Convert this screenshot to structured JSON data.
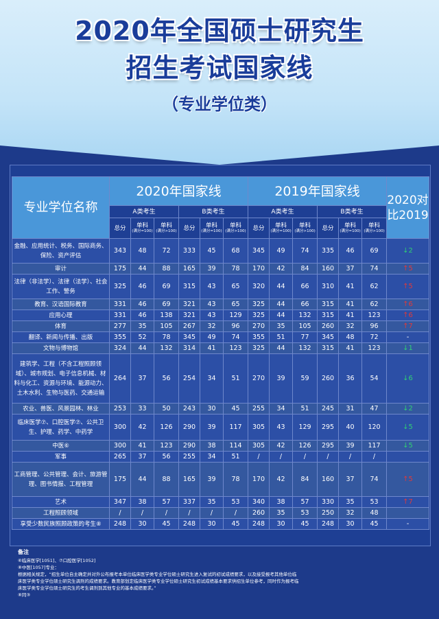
{
  "title_line1": "2020年全国硕士研究生",
  "title_line2": "招生考试国家线",
  "title_line3": "（专业学位类）",
  "header": {
    "name": "专业学位名称",
    "y2020": "2020年国家线",
    "y2019": "2019年国家线",
    "cmp": "2020对比2019",
    "cat_a": "A类考生",
    "cat_b": "B类考生",
    "total": "总分",
    "single": "单科",
    "sub_le100": "(满分=100)",
    "sub_gt100": "(满分>100)"
  },
  "rows": [
    {
      "name": "金融、应用统计、税务、国际商务、保险、资产评估",
      "v": [
        "343",
        "48",
        "72",
        "333",
        "45",
        "68",
        "345",
        "49",
        "74",
        "335",
        "46",
        "69"
      ],
      "chg": "↓2",
      "dir": "down"
    },
    {
      "name": "审计",
      "v": [
        "175",
        "44",
        "88",
        "165",
        "39",
        "78",
        "170",
        "42",
        "84",
        "160",
        "37",
        "74"
      ],
      "chg": "↑5",
      "dir": "up"
    },
    {
      "name": "法律（非法学）、法律（法学）、社会工作、警务",
      "v": [
        "325",
        "46",
        "69",
        "315",
        "43",
        "65",
        "320",
        "44",
        "66",
        "310",
        "41",
        "62"
      ],
      "chg": "↑5",
      "dir": "up"
    },
    {
      "name": "教育、汉语国际教育",
      "v": [
        "331",
        "46",
        "69",
        "321",
        "43",
        "65",
        "325",
        "44",
        "66",
        "315",
        "41",
        "62"
      ],
      "chg": "↑6",
      "dir": "up"
    },
    {
      "name": "应用心理",
      "v": [
        "331",
        "46",
        "138",
        "321",
        "43",
        "129",
        "325",
        "44",
        "132",
        "315",
        "41",
        "123"
      ],
      "chg": "↑6",
      "dir": "up"
    },
    {
      "name": "体育",
      "v": [
        "277",
        "35",
        "105",
        "267",
        "32",
        "96",
        "270",
        "35",
        "105",
        "260",
        "32",
        "96"
      ],
      "chg": "↑7",
      "dir": "up"
    },
    {
      "name": "翻译、新闻与传播、出版",
      "v": [
        "355",
        "52",
        "78",
        "345",
        "49",
        "74",
        "355",
        "51",
        "77",
        "345",
        "48",
        "72"
      ],
      "chg": "-",
      "dir": "none"
    },
    {
      "name": "文物与博物馆",
      "v": [
        "324",
        "44",
        "132",
        "314",
        "41",
        "123",
        "325",
        "44",
        "132",
        "315",
        "41",
        "123"
      ],
      "chg": "↓1",
      "dir": "down"
    },
    {
      "name": "建筑学、工程（不含工程照顾领域）、城市规划、电子信息机械、材料与化工、资源与环境、能源动力、土木水利、生物与医药、交通运输",
      "v": [
        "264",
        "37",
        "56",
        "254",
        "34",
        "51",
        "270",
        "39",
        "59",
        "260",
        "36",
        "54"
      ],
      "chg": "↓6",
      "dir": "down"
    },
    {
      "name": "农业、兽医、风景园林、林业",
      "v": [
        "253",
        "33",
        "50",
        "243",
        "30",
        "45",
        "255",
        "34",
        "51",
        "245",
        "31",
        "47"
      ],
      "chg": "↓2",
      "dir": "down"
    },
    {
      "name": "临床医学⑦、口腔医学⑦、公共卫生、护理、药学、中药学",
      "v": [
        "300",
        "42",
        "126",
        "290",
        "39",
        "117",
        "305",
        "43",
        "129",
        "295",
        "40",
        "120"
      ],
      "chg": "↓5",
      "dir": "down"
    },
    {
      "name": "中医⑥",
      "v": [
        "300",
        "41",
        "123",
        "290",
        "38",
        "114",
        "305",
        "42",
        "126",
        "295",
        "39",
        "117"
      ],
      "chg": "↓5",
      "dir": "down"
    },
    {
      "name": "军事",
      "v": [
        "265",
        "37",
        "56",
        "255",
        "34",
        "51",
        "/",
        "/",
        "/",
        "/",
        "/",
        "/"
      ],
      "chg": "",
      "dir": "none"
    },
    {
      "name": "工商管理、公共管理、会计、旅游管理、图书情报、工程管理",
      "v": [
        "175",
        "44",
        "88",
        "165",
        "39",
        "78",
        "170",
        "42",
        "84",
        "160",
        "37",
        "74"
      ],
      "chg": "↑5",
      "dir": "up"
    },
    {
      "name": "艺术",
      "v": [
        "347",
        "38",
        "57",
        "337",
        "35",
        "53",
        "340",
        "38",
        "57",
        "330",
        "35",
        "53"
      ],
      "chg": "↑7",
      "dir": "up"
    },
    {
      "name": "工程照顾领域",
      "v": [
        "/",
        "/",
        "/",
        "/",
        "/",
        "/",
        "260",
        "35",
        "53",
        "250",
        "32",
        "48"
      ],
      "chg": "",
      "dir": "none"
    },
    {
      "name": "享受少数民族照顾政策的考生⑧",
      "v": [
        "248",
        "30",
        "45",
        "248",
        "30",
        "45",
        "248",
        "30",
        "45",
        "248",
        "30",
        "45"
      ],
      "chg": "-",
      "dir": "none"
    }
  ],
  "notes": {
    "title": "备注",
    "n1": "⑥临床医学[1051]、⑦口腔医学[1052]",
    "n2": "⑧中医[1057]专业：",
    "n3": "根据相关规定，“招生单位自主确定并对外公布报考本单位临床医学类专业学位硕士研究生进入复试的初试成绩要求，以及接受报考其他单位临",
    "n4": "床医学类专业学位硕士研究生调剂的成绩要求。教育部划定临床医学类专业学位硕士研究生初试成绩基本要求供招生单位参考，同时作为报考临",
    "n5": "床医学类专业学位硕士研究生的考生调剂到其他专业的基本成绩要求。”",
    "n6": "⑧同③"
  },
  "colors": {
    "up": "#e03a3a",
    "down": "#30d073",
    "band": "#4a97d9"
  }
}
